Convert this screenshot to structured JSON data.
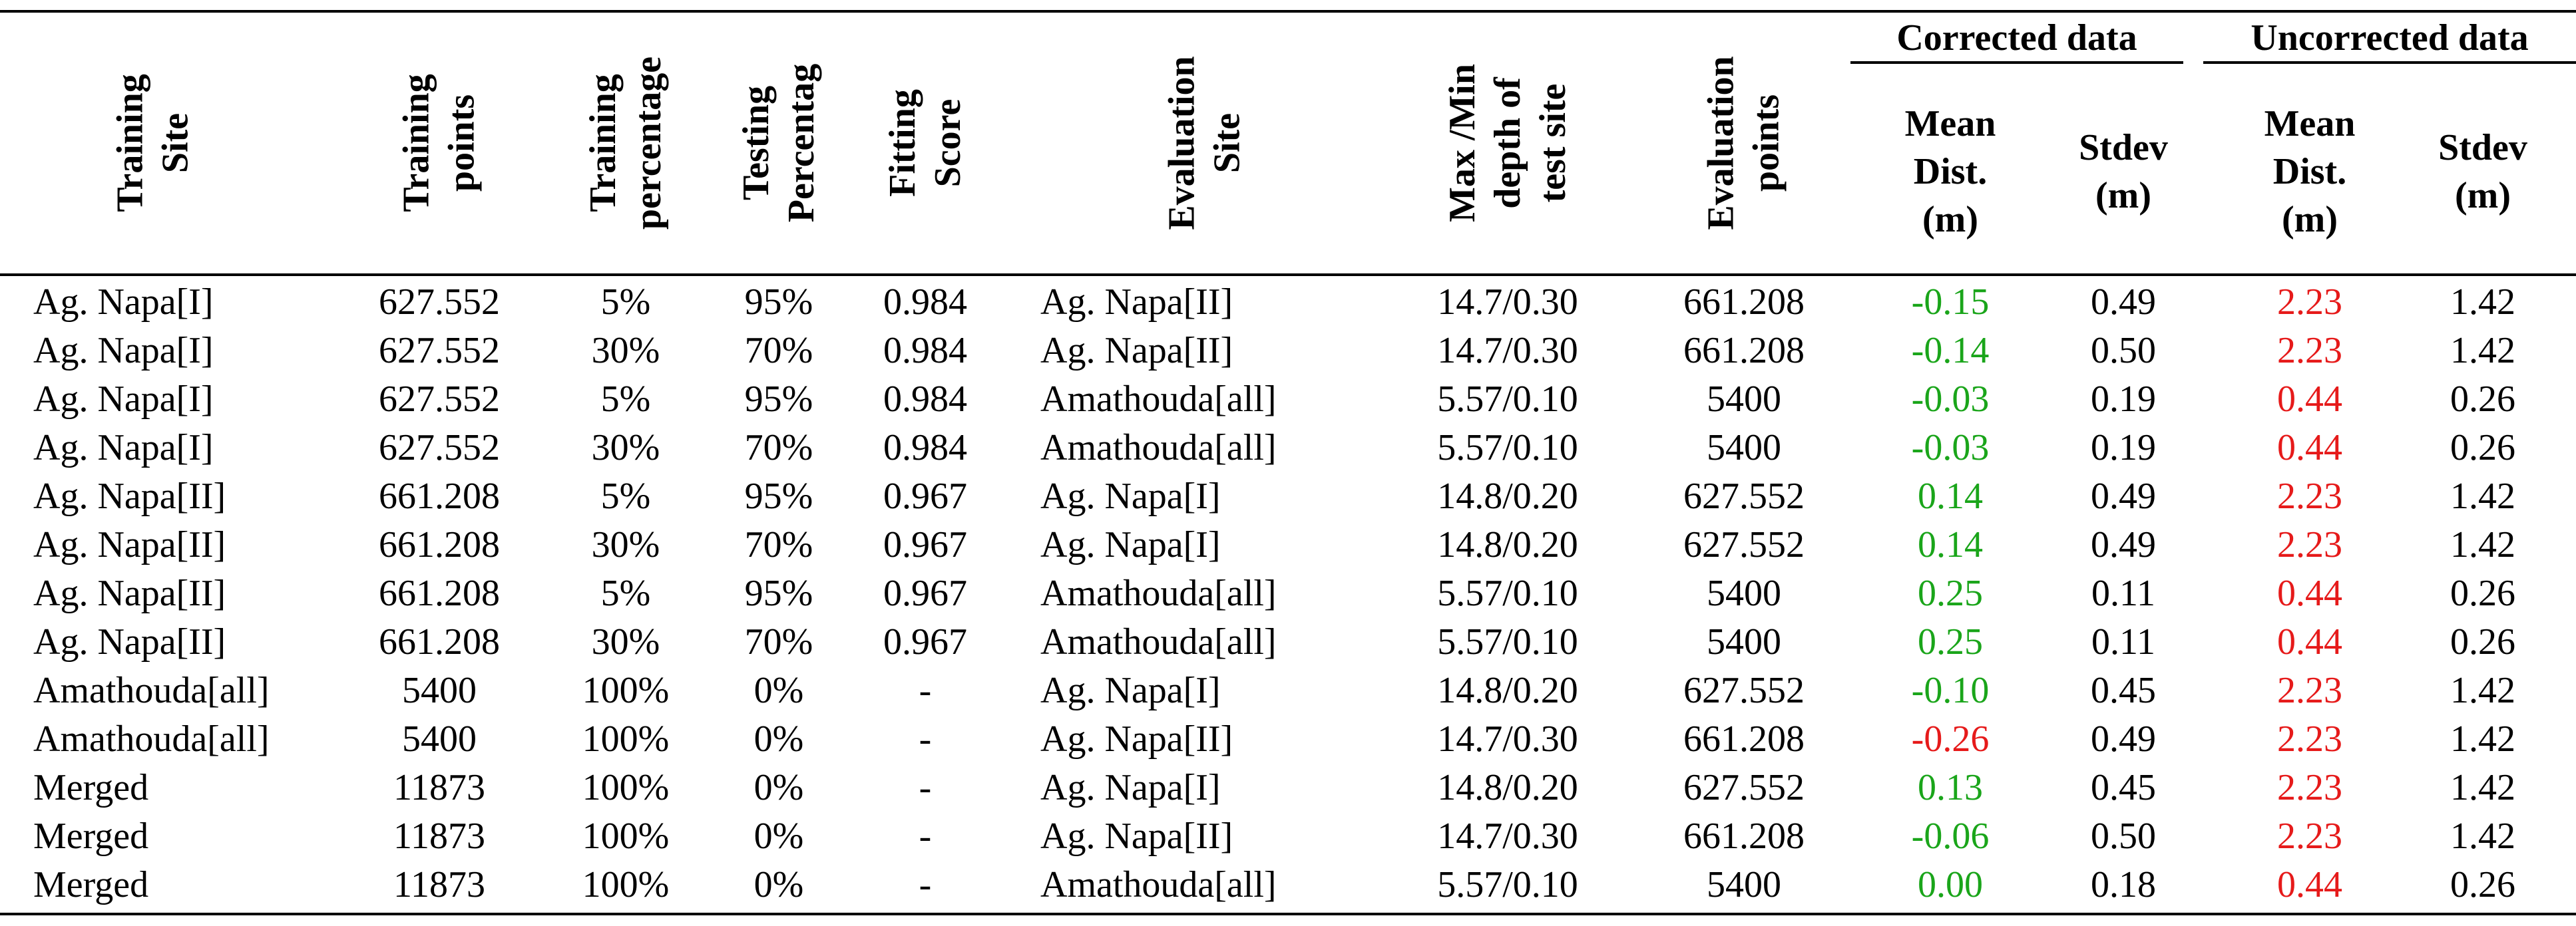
{
  "colors": {
    "corrected_value": "#1aa51a",
    "negative_value": "#e61a1a",
    "uncorrected_value": "#e61a1a"
  },
  "headers": {
    "training_site": "Training\nSite",
    "training_points": "Training\npoints",
    "training_percentage": "Training\npercentage",
    "testing_percentage": "Testing\nPercentag",
    "fitting_score": "Fitting\nScore",
    "evaluation_site": "Evaluation\nSite",
    "max_min_depth": "Max /Min\ndepth of\ntest site",
    "evaluation_points": "Evaluation\npoints",
    "corrected_group": "Corrected data",
    "uncorrected_group": "Uncorrected data",
    "mean_dist": "Mean\nDist.\n(m)",
    "stdev": "Stdev\n(m)"
  },
  "rows": [
    {
      "training_site": "Ag. Napa[I]",
      "training_points": "627.552",
      "training_pct": "5%",
      "testing_pct": "95%",
      "fitting_score": "0.984",
      "evaluation_site": "Ag. Napa[II]",
      "depth": "14.7/0.30",
      "evaluation_points": "661.208",
      "corr_mean": "-0.15",
      "corr_stdev": "0.49",
      "uncorr_mean": "2.23",
      "uncorr_stdev": "1.42"
    },
    {
      "training_site": "Ag. Napa[I]",
      "training_points": "627.552",
      "training_pct": "30%",
      "testing_pct": "70%",
      "fitting_score": "0.984",
      "evaluation_site": "Ag. Napa[II]",
      "depth": "14.7/0.30",
      "evaluation_points": "661.208",
      "corr_mean": "-0.14",
      "corr_stdev": "0.50",
      "uncorr_mean": "2.23",
      "uncorr_stdev": "1.42"
    },
    {
      "training_site": "Ag. Napa[I]",
      "training_points": "627.552",
      "training_pct": "5%",
      "testing_pct": "95%",
      "fitting_score": "0.984",
      "evaluation_site": "Amathouda[all]",
      "depth": "5.57/0.10",
      "evaluation_points": "5400",
      "corr_mean": "-0.03",
      "corr_stdev": "0.19",
      "uncorr_mean": "0.44",
      "uncorr_stdev": "0.26"
    },
    {
      "training_site": "Ag. Napa[I]",
      "training_points": "627.552",
      "training_pct": "30%",
      "testing_pct": "70%",
      "fitting_score": "0.984",
      "evaluation_site": "Amathouda[all]",
      "depth": "5.57/0.10",
      "evaluation_points": "5400",
      "corr_mean": "-0.03",
      "corr_stdev": "0.19",
      "uncorr_mean": "0.44",
      "uncorr_stdev": "0.26"
    },
    {
      "training_site": "Ag. Napa[II]",
      "training_points": "661.208",
      "training_pct": "5%",
      "testing_pct": "95%",
      "fitting_score": "0.967",
      "evaluation_site": "Ag. Napa[I]",
      "depth": "14.8/0.20",
      "evaluation_points": "627.552",
      "corr_mean": "0.14",
      "corr_stdev": "0.49",
      "uncorr_mean": "2.23",
      "uncorr_stdev": "1.42"
    },
    {
      "training_site": "Ag. Napa[II]",
      "training_points": "661.208",
      "training_pct": "30%",
      "testing_pct": "70%",
      "fitting_score": "0.967",
      "evaluation_site": "Ag. Napa[I]",
      "depth": "14.8/0.20",
      "evaluation_points": "627.552",
      "corr_mean": "0.14",
      "corr_stdev": "0.49",
      "uncorr_mean": "2.23",
      "uncorr_stdev": "1.42"
    },
    {
      "training_site": "Ag. Napa[II]",
      "training_points": "661.208",
      "training_pct": "5%",
      "testing_pct": "95%",
      "fitting_score": "0.967",
      "evaluation_site": "Amathouda[all]",
      "depth": "5.57/0.10",
      "evaluation_points": "5400",
      "corr_mean": "0.25",
      "corr_stdev": "0.11",
      "uncorr_mean": "0.44",
      "uncorr_stdev": "0.26"
    },
    {
      "training_site": "Ag. Napa[II]",
      "training_points": "661.208",
      "training_pct": "30%",
      "testing_pct": "70%",
      "fitting_score": "0.967",
      "evaluation_site": "Amathouda[all]",
      "depth": "5.57/0.10",
      "evaluation_points": "5400",
      "corr_mean": "0.25",
      "corr_stdev": "0.11",
      "uncorr_mean": "0.44",
      "uncorr_stdev": "0.26"
    },
    {
      "training_site": "Amathouda[all]",
      "training_points": "5400",
      "training_pct": "100%",
      "testing_pct": "0%",
      "fitting_score": "-",
      "evaluation_site": "Ag. Napa[I]",
      "depth": "14.8/0.20",
      "evaluation_points": "627.552",
      "corr_mean": "-0.10",
      "corr_stdev": "0.45",
      "uncorr_mean": "2.23",
      "uncorr_stdev": "1.42"
    },
    {
      "training_site": "Amathouda[all]",
      "training_points": "5400",
      "training_pct": "100%",
      "testing_pct": "0%",
      "fitting_score": "-",
      "evaluation_site": "Ag. Napa[II]",
      "depth": "14.7/0.30",
      "evaluation_points": "661.208",
      "corr_mean": "-0.26",
      "corr_stdev": "0.49",
      "uncorr_mean": "2.23",
      "uncorr_stdev": "1.42"
    },
    {
      "training_site": "Merged",
      "training_points": "11873",
      "training_pct": "100%",
      "testing_pct": "0%",
      "fitting_score": "-",
      "evaluation_site": "Ag. Napa[I]",
      "depth": "14.8/0.20",
      "evaluation_points": "627.552",
      "corr_mean": "0.13",
      "corr_stdev": "0.45",
      "uncorr_mean": "2.23",
      "uncorr_stdev": "1.42"
    },
    {
      "training_site": "Merged",
      "training_points": "11873",
      "training_pct": "100%",
      "testing_pct": "0%",
      "fitting_score": "-",
      "evaluation_site": "Ag. Napa[II]",
      "depth": "14.7/0.30",
      "evaluation_points": "661.208",
      "corr_mean": "-0.06",
      "corr_stdev": "0.50",
      "uncorr_mean": "2.23",
      "uncorr_stdev": "1.42"
    },
    {
      "training_site": "Merged",
      "training_points": "11873",
      "training_pct": "100%",
      "testing_pct": "0%",
      "fitting_score": "-",
      "evaluation_site": "Amathouda[all]",
      "depth": "5.57/0.10",
      "evaluation_points": "5400",
      "corr_mean": "0.00",
      "corr_stdev": "0.18",
      "uncorr_mean": "0.44",
      "uncorr_stdev": "0.26"
    }
  ],
  "row_styles": {
    "corr_mean_red_rows": [
      9
    ]
  }
}
